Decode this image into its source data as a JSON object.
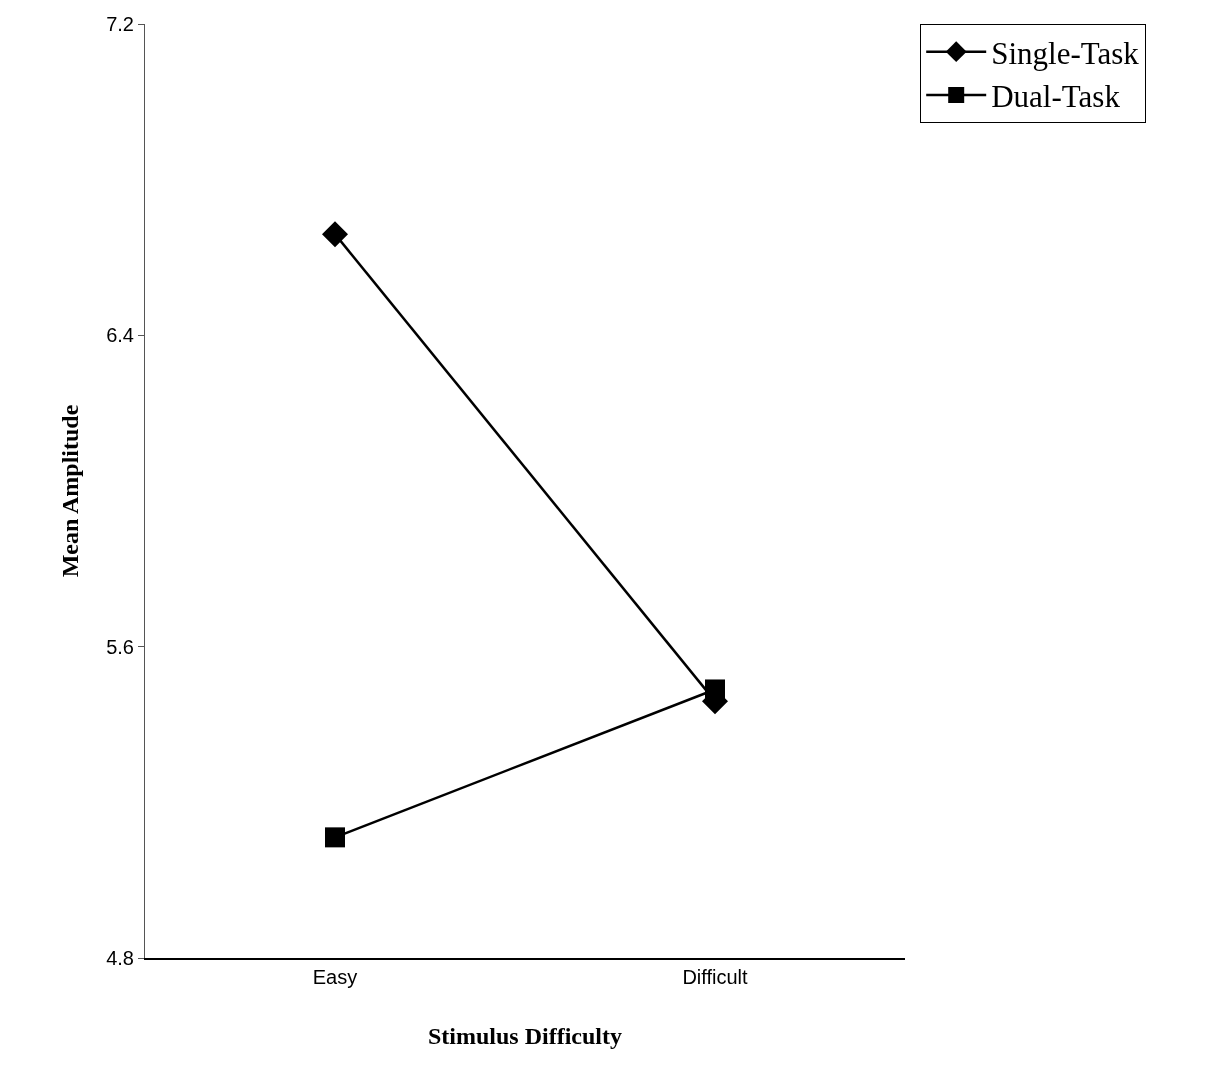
{
  "chart_data": {
    "type": "line",
    "xlabel": "Stimulus Difficulty",
    "ylabel": "Mean Amplitude",
    "categories": [
      "Easy",
      "Difficult"
    ],
    "series": [
      {
        "name": "Single-Task",
        "color": "#000000",
        "marker": "diamond",
        "values": [
          6.66,
          5.46
        ]
      },
      {
        "name": "Dual-Task",
        "color": "#000000",
        "marker": "square",
        "values": [
          5.11,
          5.49
        ]
      }
    ],
    "ylim": [
      4.8,
      7.2
    ],
    "yticks": [
      4.8,
      5.6,
      6.4,
      7.2
    ],
    "legend": "top right",
    "line_style": "solid"
  }
}
